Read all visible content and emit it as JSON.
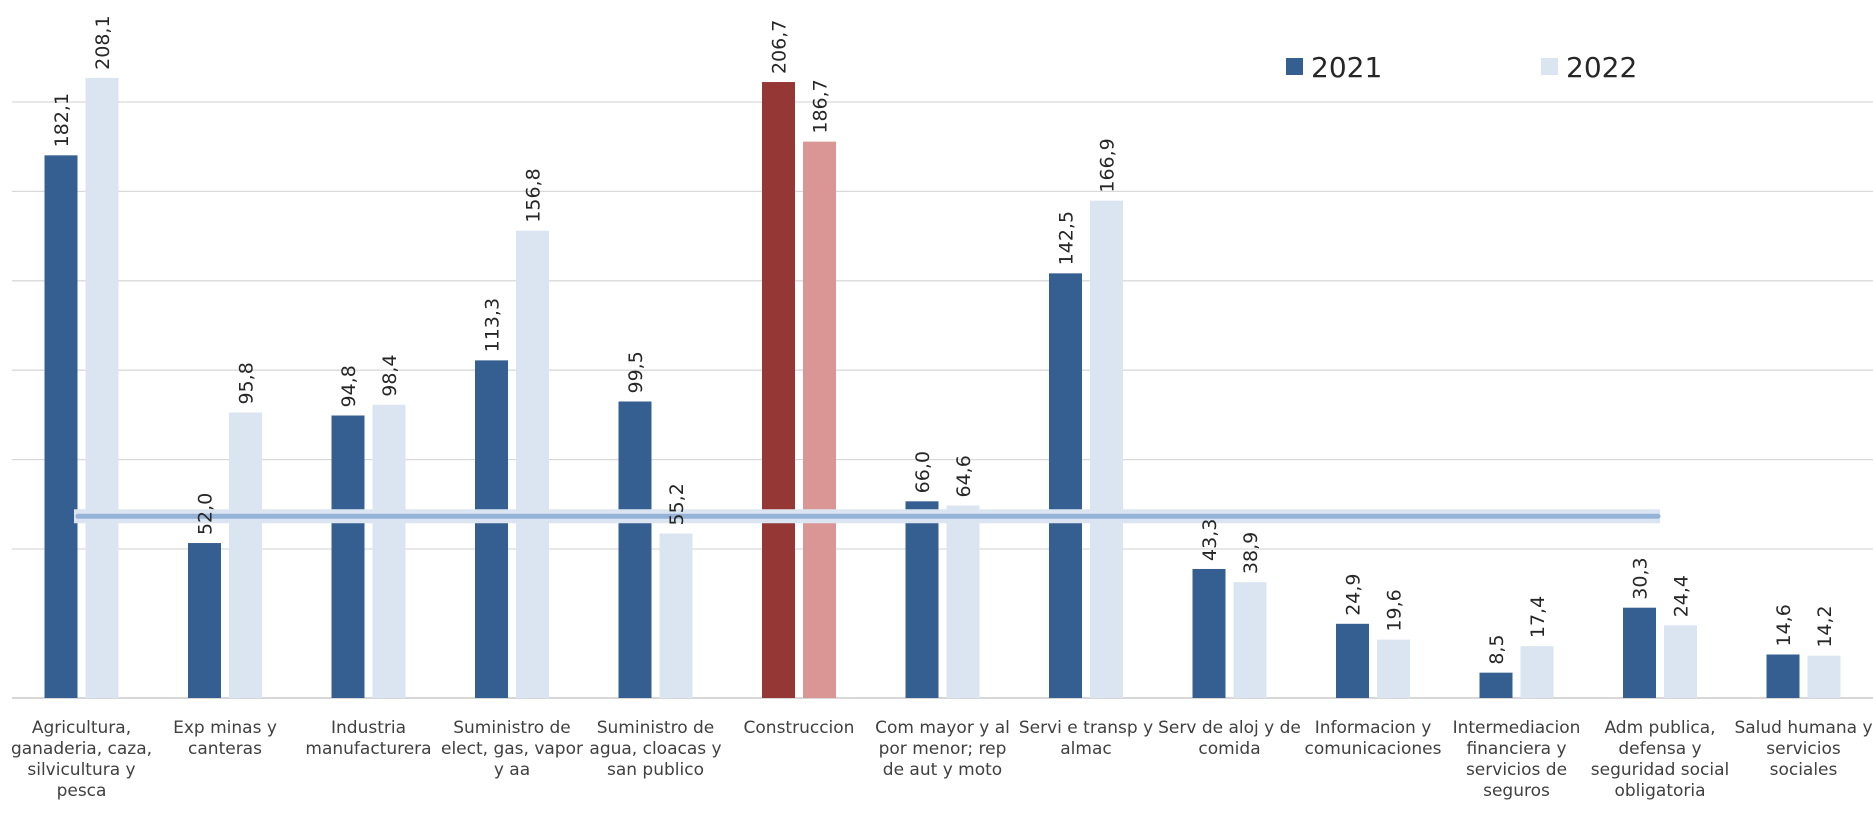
{
  "chart_data": {
    "type": "bar",
    "title": "",
    "xlabel": "",
    "ylabel": "",
    "ylim": [
      0,
      210
    ],
    "grid": true,
    "legend_position": "top-right",
    "categories": [
      "Agricultura, ganaderia, caza, silvicultura y pesca",
      "Exp minas y canteras",
      "Industria manufacturera",
      "Suministro de elect, gas, vapor y aa",
      "Suministro de agua, cloacas y san publico",
      "Construccion",
      "Com mayor y al por menor; rep de aut y moto",
      "Servi e transp y almac",
      "Serv de aloj y de comida",
      "Informacion y comunicaciones",
      "Intermediacion financiera y servicios de seguros",
      "Adm publica, defensa y seguridad social obligatoria",
      "Salud humana y servicios sociales"
    ],
    "category_lines": [
      [
        "Agricultura,",
        "ganaderia, caza,",
        "silvicultura y",
        "pesca"
      ],
      [
        "Exp minas y",
        "canteras"
      ],
      [
        "Industria",
        "manufacturera"
      ],
      [
        "Suministro de",
        "elect, gas, vapor",
        "y aa"
      ],
      [
        "Suministro de",
        "agua, cloacas y",
        "san publico"
      ],
      [
        "Construccion"
      ],
      [
        "Com mayor y al",
        "por menor; rep",
        "de aut y moto"
      ],
      [
        "Servi e transp y",
        "almac"
      ],
      [
        "Serv de aloj y de",
        "comida"
      ],
      [
        "Informacion y",
        "comunicaciones"
      ],
      [
        "Intermediacion",
        "financiera y",
        "servicios de",
        "seguros"
      ],
      [
        "Adm publica,",
        "defensa y",
        "seguridad social",
        "obligatoria"
      ],
      [
        "Salud humana y",
        "servicios",
        "sociales"
      ]
    ],
    "series": [
      {
        "name": "2021",
        "values": [
          182.1,
          52.0,
          94.8,
          113.3,
          99.5,
          206.7,
          66.0,
          142.5,
          43.3,
          24.9,
          8.5,
          30.3,
          14.6
        ],
        "labels": [
          "182,1",
          "52,0",
          "94,8",
          "113,3",
          "99,5",
          "206,7",
          "66,0",
          "142,5",
          "43,3",
          "24,9",
          "8,5",
          "30,3",
          "14,6"
        ]
      },
      {
        "name": "2022",
        "values": [
          208.1,
          95.8,
          98.4,
          156.8,
          55.2,
          186.7,
          64.6,
          166.9,
          38.9,
          19.6,
          17.4,
          24.4,
          14.2
        ],
        "labels": [
          "208,1",
          "95,8",
          "98,4",
          "156,8",
          "55,2",
          "186,7",
          "64,6",
          "166,9",
          "38,9",
          "19,6",
          "17,4",
          "24,4",
          "14,2"
        ]
      }
    ],
    "reference_line": {
      "value": 61
    },
    "colors": {
      "series_2021": "#365f91",
      "series_2022": "#dbe5f1",
      "highlight_2021": "#953735",
      "highlight_2022": "#d99694",
      "reference_line": "#95b3d7"
    },
    "highlight_category_index": 5
  }
}
